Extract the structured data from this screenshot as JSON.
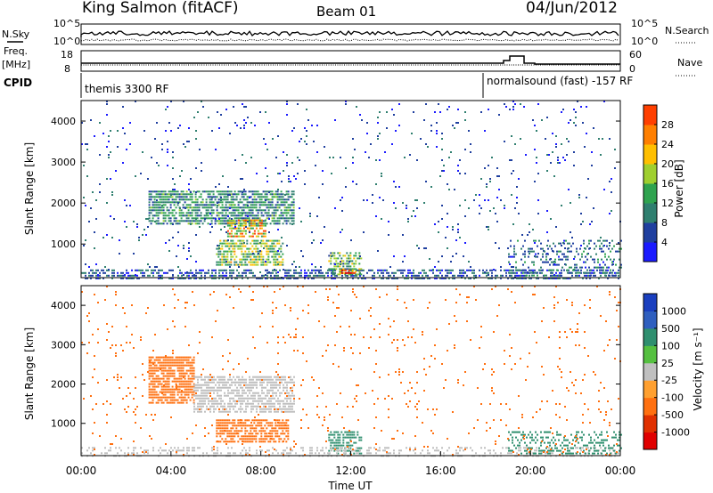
{
  "header": {
    "station": "King Salmon (fitACF)",
    "beam": "Beam 01",
    "date": "04/Jun/2012"
  },
  "left_labels": {
    "nsky": "N.Sky",
    "freq": "Freq.",
    "mhz": "[MHz]",
    "cpid": "CPID"
  },
  "right_labels": {
    "nsearch": "N.Search",
    "nave": "Nave"
  },
  "noise_panel": {
    "ytick_top": "10^5",
    "ytick_bottom": "10^0",
    "right_tick_top": "10^5",
    "right_tick_bottom": "10^0"
  },
  "freq_panel": {
    "left_ticks": [
      "18",
      "8"
    ],
    "right_ticks": [
      "60",
      "0"
    ]
  },
  "cpid_panel": {
    "left_text": "themis 3300 RF",
    "right_text": "normalsound (fast) -157 RF"
  },
  "colors": {
    "power_scale": [
      "#1a1aff",
      "#1f3f9f",
      "#2f7f6f",
      "#2fa34f",
      "#9fcf2f",
      "#ffbf00",
      "#ff7f00",
      "#ff3f00",
      "#e00000"
    ],
    "velocity_scale": [
      "#1a3fbf",
      "#2f5fbf",
      "#2f8f6f",
      "#55c040",
      "#c0c0c0",
      "#ffa030",
      "#ff7010",
      "#e03000",
      "#e00000"
    ],
    "groundscatter": "#bfbfbf"
  },
  "chart_data": [
    {
      "type": "heatmap",
      "name": "power-panel",
      "xlabel": "Time UT",
      "ylabel": "Slant Range [km]",
      "xlim": [
        0,
        24
      ],
      "ylim": [
        180,
        4500
      ],
      "xticks": [
        "00:00",
        "04:00",
        "08:00",
        "12:00",
        "16:00",
        "20:00",
        "00:00"
      ],
      "yticks": [
        1000,
        2000,
        3000,
        4000
      ],
      "colorbar": {
        "label": "Power [dB]",
        "ticks": [
          4,
          8,
          12,
          16,
          20,
          24,
          28
        ],
        "range": [
          0,
          30
        ]
      },
      "regions": [
        {
          "t0": 0.0,
          "t1": 24.0,
          "r0": 180,
          "r1": 380,
          "value": 6,
          "density": 0.55
        },
        {
          "t0": 3.0,
          "t1": 9.5,
          "r0": 1500,
          "r1": 2300,
          "value": 9,
          "density": 0.75
        },
        {
          "t0": 6.0,
          "t1": 9.0,
          "r0": 500,
          "r1": 1100,
          "value": 14,
          "density": 0.7
        },
        {
          "t0": 6.5,
          "t1": 8.2,
          "r0": 1200,
          "r1": 1600,
          "value": 18,
          "density": 0.7
        },
        {
          "t0": 11.0,
          "t1": 12.5,
          "r0": 250,
          "r1": 800,
          "value": 12,
          "density": 0.6
        },
        {
          "t0": 11.5,
          "t1": 12.2,
          "r0": 250,
          "r1": 380,
          "value": 26,
          "density": 0.8
        },
        {
          "t0": 0.0,
          "t1": 24.0,
          "r0": 180,
          "r1": 4500,
          "value": 5,
          "density": 0.03
        },
        {
          "t0": 19.0,
          "t1": 24.0,
          "r0": 200,
          "r1": 1100,
          "value": 7,
          "density": 0.25
        }
      ]
    },
    {
      "type": "heatmap",
      "name": "velocity-panel",
      "xlabel": "Time UT",
      "ylabel": "Slant Range [km]",
      "xlim": [
        0,
        24
      ],
      "ylim": [
        180,
        4500
      ],
      "xticks": [
        "00:00",
        "04:00",
        "08:00",
        "12:00",
        "16:00",
        "20:00",
        "00:00"
      ],
      "yticks": [
        1000,
        2000,
        3000,
        4000
      ],
      "colorbar": {
        "label": "Velocity [m s⁻¹]",
        "ticks": [
          "1000",
          "500",
          "100",
          "25",
          "-25",
          "-100",
          "-500",
          "-1000"
        ]
      },
      "regions": [
        {
          "t0": 3.0,
          "t1": 5.0,
          "r0": 1500,
          "r1": 2700,
          "value": -200,
          "density": 0.75
        },
        {
          "t0": 5.0,
          "t1": 9.5,
          "r0": 1300,
          "r1": 2200,
          "value": 0,
          "ground": true,
          "density": 0.7
        },
        {
          "t0": 6.0,
          "t1": 9.2,
          "r0": 500,
          "r1": 1100,
          "value": -300,
          "density": 0.7
        },
        {
          "t0": 11.0,
          "t1": 12.5,
          "r0": 250,
          "r1": 800,
          "value": 50,
          "density": 0.6
        },
        {
          "t0": 0.0,
          "t1": 24.0,
          "r0": 180,
          "r1": 400,
          "value": 0,
          "ground": true,
          "density": 0.3
        },
        {
          "t0": 19.0,
          "t1": 24.0,
          "r0": 200,
          "r1": 800,
          "value": 60,
          "density": 0.35
        },
        {
          "t0": 0.0,
          "t1": 24.0,
          "r0": 180,
          "r1": 4500,
          "value": -150,
          "density": 0.03
        }
      ]
    }
  ]
}
